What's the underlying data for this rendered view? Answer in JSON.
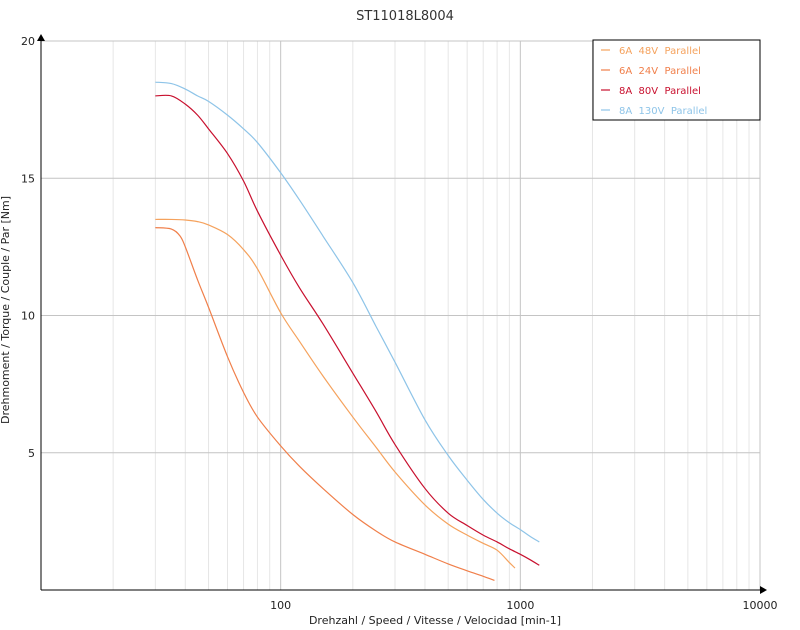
{
  "chart_data": {
    "type": "line",
    "title": "ST11018L8004",
    "xlabel": "Drehzahl / Speed / Vitesse / Velocidad [min-1]",
    "ylabel": "Drehmoment / Torque / Couple / Par [Nm]",
    "x_scale": "log",
    "xlim": [
      10,
      10000
    ],
    "ylim": [
      0,
      20
    ],
    "x_ticks": [
      100,
      1000,
      10000
    ],
    "x_tick_labels": [
      "100",
      "1000",
      "10000"
    ],
    "y_ticks": [
      5,
      10,
      15,
      20
    ],
    "y_tick_labels": [
      "5",
      "10",
      "15",
      "20"
    ],
    "grid": true,
    "legend_position": "top-right",
    "series": [
      {
        "name": "6A  48V  Parallel",
        "color": "#F5A25D",
        "x": [
          30,
          35,
          40,
          45,
          50,
          60,
          70,
          80,
          100,
          120,
          150,
          200,
          250,
          300,
          400,
          500,
          600,
          700,
          800,
          900,
          950
        ],
        "y": [
          13.5,
          13.5,
          13.48,
          13.42,
          13.3,
          12.95,
          12.4,
          11.7,
          10.1,
          9.05,
          7.8,
          6.3,
          5.2,
          4.3,
          3.1,
          2.4,
          2.0,
          1.7,
          1.45,
          1.0,
          0.8
        ]
      },
      {
        "name": "6A  24V  Parallel",
        "color": "#F07F4A",
        "x": [
          30,
          35,
          38,
          40,
          45,
          50,
          60,
          70,
          80,
          100,
          120,
          150,
          200,
          250,
          300,
          400,
          500,
          600,
          700,
          780
        ],
        "y": [
          13.2,
          13.15,
          12.9,
          12.5,
          11.3,
          10.3,
          8.5,
          7.2,
          6.3,
          5.25,
          4.5,
          3.7,
          2.75,
          2.15,
          1.75,
          1.3,
          0.95,
          0.7,
          0.5,
          0.35
        ]
      },
      {
        "name": "8A  80V  Parallel",
        "color": "#C8102E",
        "x": [
          30,
          35,
          40,
          45,
          50,
          60,
          70,
          80,
          100,
          120,
          150,
          200,
          250,
          300,
          400,
          500,
          600,
          700,
          800,
          900,
          1000,
          1100,
          1200
        ],
        "y": [
          18.0,
          18.0,
          17.7,
          17.3,
          16.8,
          15.9,
          14.9,
          13.8,
          12.2,
          11.0,
          9.7,
          7.9,
          6.5,
          5.3,
          3.7,
          2.8,
          2.35,
          2.0,
          1.75,
          1.5,
          1.3,
          1.1,
          0.9
        ]
      },
      {
        "name": "8A  130V  Parallel",
        "color": "#8EC4E8",
        "x": [
          30,
          35,
          40,
          45,
          50,
          60,
          70,
          80,
          100,
          120,
          150,
          200,
          250,
          300,
          400,
          500,
          600,
          700,
          800,
          900,
          1000,
          1100,
          1200
        ],
        "y": [
          18.5,
          18.45,
          18.25,
          18.0,
          17.8,
          17.3,
          16.8,
          16.3,
          15.2,
          14.2,
          12.9,
          11.2,
          9.6,
          8.3,
          6.2,
          4.9,
          4.0,
          3.3,
          2.8,
          2.45,
          2.2,
          1.95,
          1.75
        ]
      }
    ]
  }
}
